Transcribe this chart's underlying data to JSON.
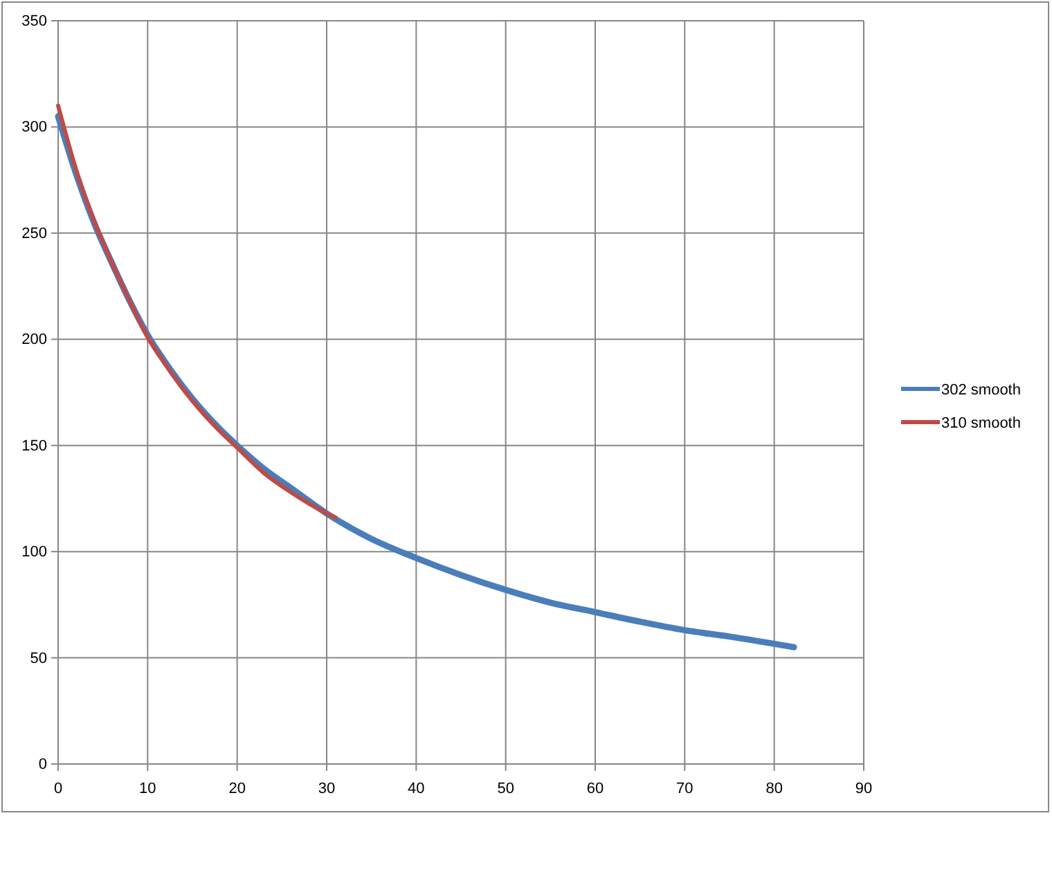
{
  "chart_data": {
    "type": "line",
    "xlim": [
      0,
      90
    ],
    "xticks": [
      0,
      10,
      20,
      30,
      40,
      50,
      60,
      70,
      80,
      90
    ],
    "ylim": [
      0,
      350
    ],
    "yticks": [
      0,
      50,
      100,
      150,
      200,
      250,
      300,
      350
    ],
    "grid": true,
    "legend": "right",
    "marker": "none",
    "line_style": "solid",
    "series": [
      {
        "name": "302 smooth",
        "color": "#4a7ebb",
        "x": [
          0,
          2,
          4,
          6,
          8,
          10,
          12,
          15,
          18,
          20,
          23,
          26,
          30,
          35,
          40,
          45,
          50,
          55,
          60,
          65,
          70,
          75,
          82.2
        ],
        "values": [
          305,
          278,
          255,
          236,
          218,
          202,
          189,
          172,
          158,
          150,
          139,
          130,
          118,
          106,
          97,
          89,
          82,
          76,
          71.5,
          67,
          63,
          60,
          55
        ]
      },
      {
        "name": "310 smooth",
        "color": "#be4b48",
        "x": [
          0,
          2,
          4,
          6,
          8,
          10,
          12,
          15,
          18,
          20,
          23,
          26,
          30,
          31
        ],
        "values": [
          310,
          280,
          256,
          236,
          218,
          201,
          188,
          171,
          157,
          149,
          137,
          128,
          118,
          116
        ]
      }
    ]
  }
}
